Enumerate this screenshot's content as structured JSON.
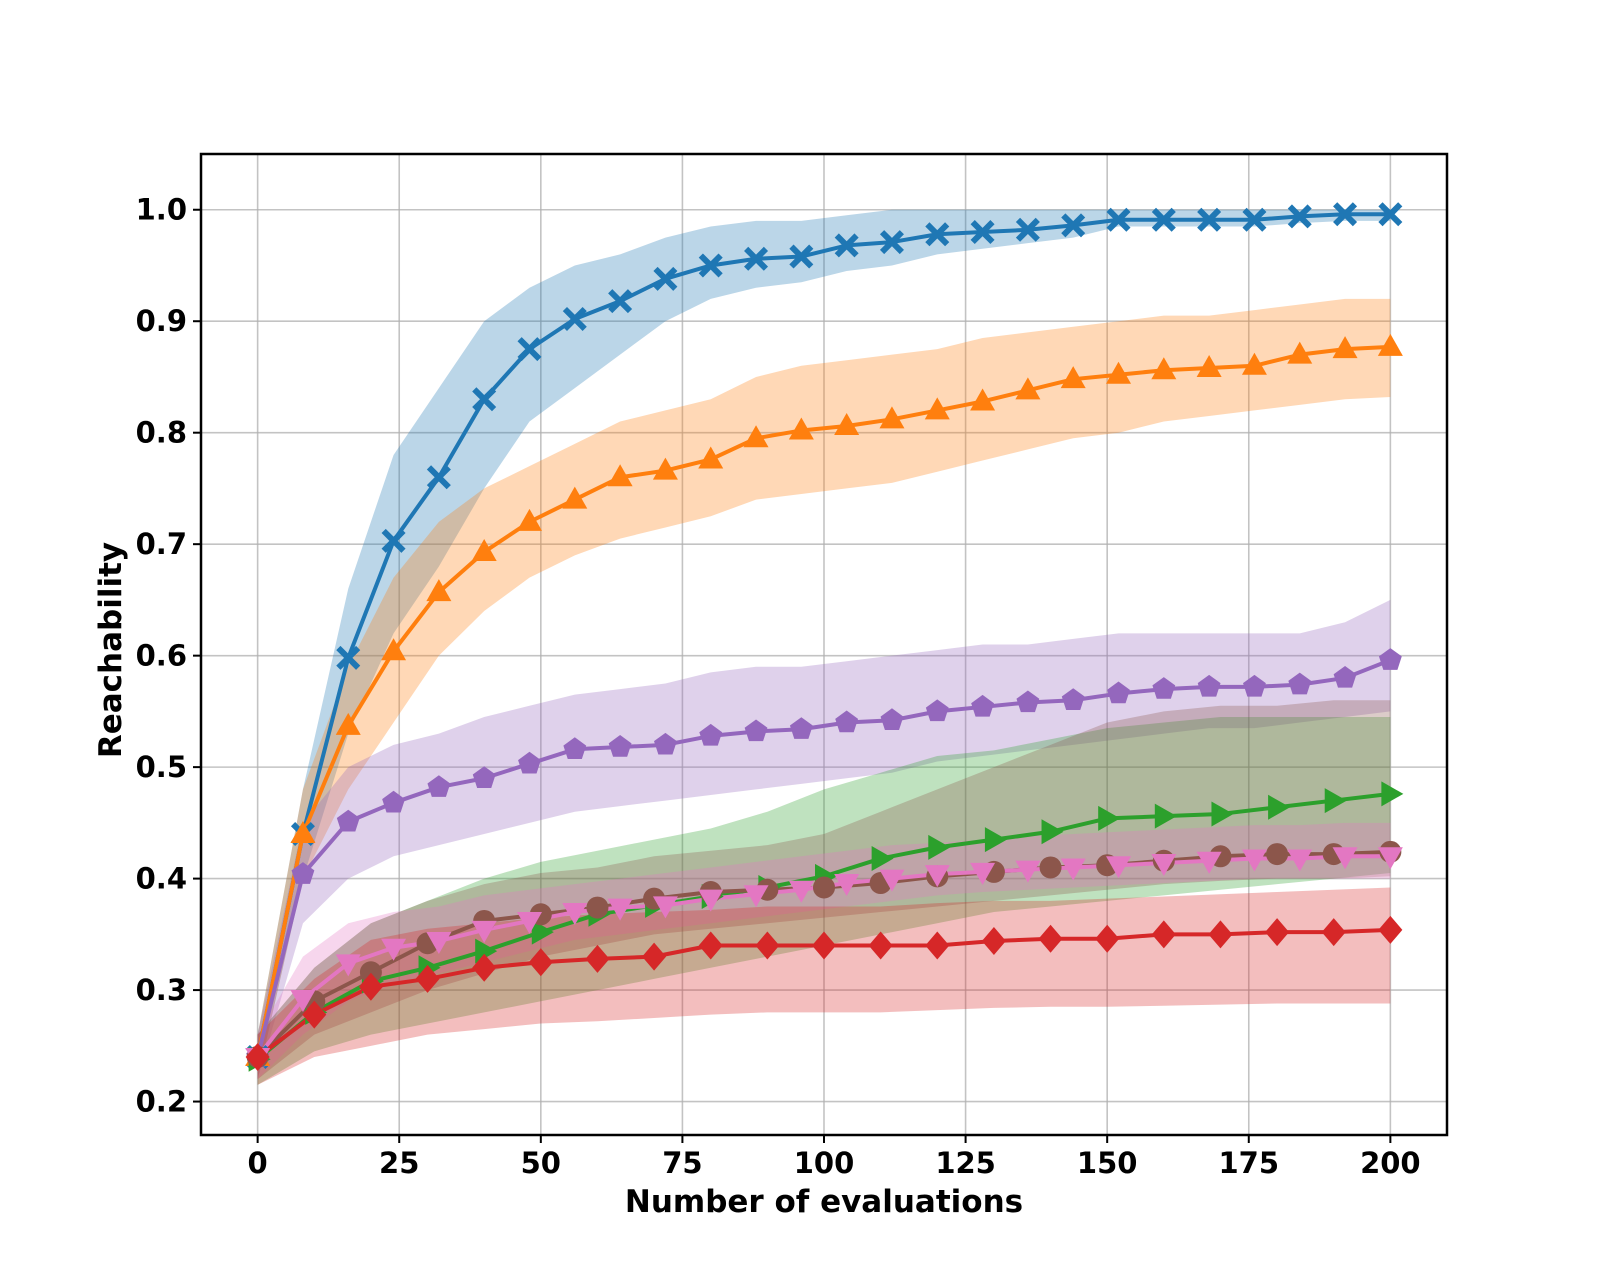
{
  "chart_data": {
    "type": "line",
    "title": "",
    "xlabel": "Number of evaluations",
    "ylabel": "Reachability",
    "xlim": [
      -10,
      210
    ],
    "ylim": [
      0.17,
      1.05
    ],
    "xticks": [
      0,
      25,
      50,
      75,
      100,
      125,
      150,
      175,
      200
    ],
    "yticks": [
      0.2,
      0.3,
      0.4,
      0.5,
      0.6,
      0.7,
      0.8,
      0.9,
      1.0
    ],
    "xtick_labels": [
      "0",
      "25",
      "50",
      "75",
      "100",
      "125",
      "150",
      "175",
      "200"
    ],
    "ytick_labels": [
      "0.2",
      "0.3",
      "0.4",
      "0.5",
      "0.6",
      "0.7",
      "0.8",
      "0.9",
      "1.0"
    ],
    "grid": true,
    "series": [
      {
        "name": "blue-x",
        "color": "#1f77b4",
        "marker": "x-filled",
        "x": [
          0,
          8,
          16,
          24,
          32,
          40,
          48,
          56,
          64,
          72,
          80,
          88,
          96,
          104,
          112,
          120,
          128,
          136,
          144,
          152,
          160,
          168,
          176,
          184,
          192,
          200
        ],
        "y": [
          0.24,
          0.44,
          0.598,
          0.703,
          0.76,
          0.83,
          0.875,
          0.902,
          0.918,
          0.938,
          0.95,
          0.956,
          0.958,
          0.968,
          0.971,
          0.978,
          0.98,
          0.982,
          0.986,
          0.991,
          0.991,
          0.991,
          0.991,
          0.994,
          0.996,
          0.996
        ],
        "lower": [
          0.22,
          0.4,
          0.53,
          0.62,
          0.68,
          0.75,
          0.81,
          0.84,
          0.87,
          0.9,
          0.92,
          0.93,
          0.935,
          0.945,
          0.95,
          0.96,
          0.965,
          0.97,
          0.975,
          0.985,
          0.985,
          0.985,
          0.985,
          0.988,
          0.99,
          0.99
        ],
        "upper": [
          0.26,
          0.48,
          0.66,
          0.78,
          0.84,
          0.9,
          0.93,
          0.95,
          0.96,
          0.975,
          0.985,
          0.99,
          0.99,
          0.995,
          1.0,
          1.0,
          1.0,
          1.0,
          1.0,
          1.0,
          1.0,
          1.0,
          1.0,
          1.0,
          1.0,
          1.0
        ]
      },
      {
        "name": "orange-triangle-up",
        "color": "#ff7f0e",
        "marker": "triangle-up",
        "x": [
          0,
          8,
          16,
          24,
          32,
          40,
          48,
          56,
          64,
          72,
          80,
          88,
          96,
          104,
          112,
          120,
          128,
          136,
          144,
          152,
          160,
          168,
          176,
          184,
          192,
          200
        ],
        "y": [
          0.24,
          0.44,
          0.537,
          0.604,
          0.657,
          0.693,
          0.72,
          0.74,
          0.76,
          0.766,
          0.776,
          0.795,
          0.802,
          0.806,
          0.812,
          0.82,
          0.828,
          0.838,
          0.848,
          0.852,
          0.856,
          0.858,
          0.86,
          0.87,
          0.875,
          0.877
        ],
        "lower": [
          0.22,
          0.4,
          0.48,
          0.54,
          0.6,
          0.64,
          0.67,
          0.69,
          0.705,
          0.715,
          0.725,
          0.74,
          0.745,
          0.75,
          0.755,
          0.765,
          0.775,
          0.785,
          0.795,
          0.8,
          0.81,
          0.815,
          0.82,
          0.825,
          0.83,
          0.832
        ],
        "upper": [
          0.26,
          0.48,
          0.59,
          0.67,
          0.72,
          0.75,
          0.77,
          0.79,
          0.81,
          0.82,
          0.83,
          0.85,
          0.86,
          0.865,
          0.87,
          0.875,
          0.885,
          0.89,
          0.895,
          0.9,
          0.905,
          0.905,
          0.91,
          0.915,
          0.92,
          0.92
        ]
      },
      {
        "name": "purple-pentagon",
        "color": "#9467bd",
        "marker": "pentagon",
        "x": [
          0,
          8,
          16,
          24,
          32,
          40,
          48,
          56,
          64,
          72,
          80,
          88,
          96,
          104,
          112,
          120,
          128,
          136,
          144,
          152,
          160,
          168,
          176,
          184,
          192,
          200
        ],
        "y": [
          0.24,
          0.404,
          0.451,
          0.468,
          0.482,
          0.49,
          0.503,
          0.516,
          0.518,
          0.52,
          0.528,
          0.532,
          0.534,
          0.54,
          0.542,
          0.55,
          0.554,
          0.558,
          0.56,
          0.566,
          0.57,
          0.572,
          0.572,
          0.574,
          0.58,
          0.596
        ],
        "lower": [
          0.22,
          0.36,
          0.4,
          0.42,
          0.43,
          0.44,
          0.45,
          0.46,
          0.465,
          0.47,
          0.475,
          0.48,
          0.485,
          0.49,
          0.495,
          0.505,
          0.51,
          0.515,
          0.52,
          0.525,
          0.53,
          0.535,
          0.535,
          0.54,
          0.545,
          0.55
        ],
        "upper": [
          0.26,
          0.45,
          0.5,
          0.52,
          0.53,
          0.545,
          0.555,
          0.565,
          0.57,
          0.575,
          0.585,
          0.59,
          0.59,
          0.595,
          0.6,
          0.605,
          0.61,
          0.61,
          0.615,
          0.62,
          0.62,
          0.62,
          0.62,
          0.62,
          0.63,
          0.65
        ]
      },
      {
        "name": "green-triangle-right",
        "color": "#2ca02c",
        "marker": "triangle-right",
        "x": [
          0,
          10,
          20,
          30,
          40,
          50,
          60,
          70,
          80,
          90,
          100,
          110,
          120,
          130,
          140,
          150,
          160,
          170,
          180,
          190,
          200
        ],
        "y": [
          0.238,
          0.28,
          0.308,
          0.32,
          0.335,
          0.352,
          0.368,
          0.376,
          0.384,
          0.392,
          0.402,
          0.418,
          0.428,
          0.435,
          0.442,
          0.454,
          0.456,
          0.458,
          0.464,
          0.47,
          0.476
        ],
        "lower": [
          0.215,
          0.245,
          0.26,
          0.27,
          0.28,
          0.29,
          0.3,
          0.31,
          0.32,
          0.33,
          0.34,
          0.35,
          0.36,
          0.37,
          0.375,
          0.38,
          0.385,
          0.39,
          0.395,
          0.4,
          0.405
        ],
        "upper": [
          0.26,
          0.32,
          0.36,
          0.38,
          0.4,
          0.415,
          0.425,
          0.435,
          0.445,
          0.46,
          0.48,
          0.495,
          0.51,
          0.515,
          0.525,
          0.535,
          0.54,
          0.545,
          0.545,
          0.545,
          0.545
        ]
      },
      {
        "name": "brown-circle",
        "color": "#8c564b",
        "marker": "circle",
        "x": [
          0,
          10,
          20,
          30,
          40,
          50,
          60,
          70,
          80,
          90,
          100,
          110,
          120,
          130,
          140,
          150,
          160,
          170,
          180,
          190,
          200
        ],
        "y": [
          0.24,
          0.29,
          0.316,
          0.342,
          0.362,
          0.368,
          0.374,
          0.382,
          0.388,
          0.39,
          0.392,
          0.396,
          0.402,
          0.406,
          0.41,
          0.412,
          0.416,
          0.42,
          0.422,
          0.422,
          0.424
        ],
        "lower": [
          0.22,
          0.26,
          0.28,
          0.3,
          0.315,
          0.33,
          0.34,
          0.35,
          0.355,
          0.36,
          0.365,
          0.37,
          0.375,
          0.38,
          0.385,
          0.39,
          0.395,
          0.398,
          0.4,
          0.4,
          0.402
        ],
        "upper": [
          0.26,
          0.32,
          0.36,
          0.38,
          0.395,
          0.405,
          0.41,
          0.42,
          0.425,
          0.43,
          0.44,
          0.46,
          0.48,
          0.5,
          0.52,
          0.54,
          0.55,
          0.555,
          0.555,
          0.56,
          0.56
        ]
      },
      {
        "name": "pink-triangle-down",
        "color": "#e377c2",
        "marker": "triangle-down",
        "x": [
          0,
          8,
          16,
          24,
          32,
          40,
          48,
          56,
          64,
          72,
          80,
          88,
          96,
          104,
          112,
          120,
          128,
          136,
          144,
          152,
          160,
          168,
          176,
          184,
          192,
          200
        ],
        "y": [
          0.24,
          0.292,
          0.324,
          0.338,
          0.344,
          0.354,
          0.362,
          0.37,
          0.374,
          0.376,
          0.382,
          0.386,
          0.39,
          0.396,
          0.4,
          0.404,
          0.406,
          0.408,
          0.41,
          0.412,
          0.414,
          0.416,
          0.418,
          0.418,
          0.42,
          0.42
        ],
        "lower": [
          0.22,
          0.26,
          0.29,
          0.305,
          0.315,
          0.325,
          0.335,
          0.345,
          0.35,
          0.355,
          0.36,
          0.365,
          0.37,
          0.375,
          0.38,
          0.385,
          0.388,
          0.39,
          0.392,
          0.394,
          0.396,
          0.398,
          0.4,
          0.4,
          0.4,
          0.4
        ],
        "upper": [
          0.26,
          0.33,
          0.36,
          0.37,
          0.375,
          0.385,
          0.39,
          0.395,
          0.4,
          0.405,
          0.41,
          0.415,
          0.42,
          0.425,
          0.43,
          0.432,
          0.435,
          0.438,
          0.44,
          0.442,
          0.444,
          0.446,
          0.448,
          0.448,
          0.45,
          0.45
        ]
      },
      {
        "name": "red-diamond",
        "color": "#d62728",
        "marker": "diamond",
        "x": [
          0,
          10,
          20,
          30,
          40,
          50,
          60,
          70,
          80,
          90,
          100,
          110,
          120,
          130,
          140,
          150,
          160,
          170,
          180,
          190,
          200
        ],
        "y": [
          0.24,
          0.278,
          0.303,
          0.31,
          0.32,
          0.325,
          0.328,
          0.33,
          0.34,
          0.34,
          0.34,
          0.34,
          0.34,
          0.344,
          0.346,
          0.346,
          0.35,
          0.35,
          0.352,
          0.352,
          0.354
        ],
        "lower": [
          0.215,
          0.24,
          0.25,
          0.26,
          0.265,
          0.27,
          0.272,
          0.275,
          0.278,
          0.28,
          0.28,
          0.28,
          0.282,
          0.284,
          0.285,
          0.285,
          0.286,
          0.287,
          0.288,
          0.288,
          0.288
        ],
        "upper": [
          0.26,
          0.31,
          0.345,
          0.355,
          0.36,
          0.365,
          0.368,
          0.37,
          0.372,
          0.375,
          0.375,
          0.375,
          0.378,
          0.38,
          0.38,
          0.382,
          0.384,
          0.386,
          0.388,
          0.39,
          0.392
        ]
      }
    ]
  }
}
